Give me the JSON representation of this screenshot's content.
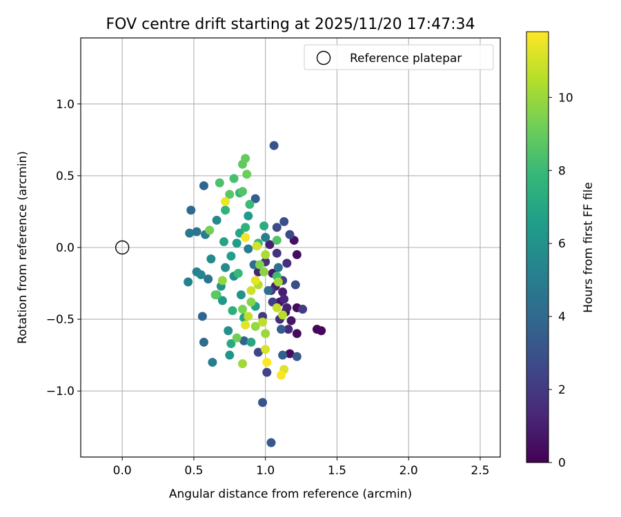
{
  "chart_data": {
    "type": "scatter",
    "title": "FOV centre drift starting at 2025/11/20 17:47:34",
    "xlabel": "Angular distance from reference (arcmin)",
    "ylabel": "Rotation from reference (arcmin)",
    "xlim": [
      -0.29,
      2.64
    ],
    "ylim": [
      -1.46,
      1.46
    ],
    "xticks": [
      0.0,
      0.5,
      1.0,
      1.5,
      2.0,
      2.5
    ],
    "xtick_labels": [
      "0.0",
      "0.5",
      "1.0",
      "1.5",
      "2.0",
      "2.5"
    ],
    "yticks": [
      -1.0,
      -0.5,
      0.0,
      0.5,
      1.0
    ],
    "ytick_labels": [
      "−1.0",
      "−0.5",
      "0.0",
      "0.5",
      "1.0"
    ],
    "grid": true,
    "legend": {
      "position": "upper-right",
      "entries": [
        "Reference platepar"
      ]
    },
    "reference_point": {
      "x": 0.0,
      "y": 0.0,
      "label": "Reference platepar"
    },
    "colorbar": {
      "label": "Hours from first FF file",
      "colormap": "viridis",
      "range": [
        0,
        11.8
      ],
      "ticks": [
        0,
        2,
        4,
        6,
        8,
        10
      ],
      "tick_labels": [
        "0",
        "2",
        "4",
        "6",
        "8",
        "10"
      ]
    },
    "points": [
      {
        "x": 1.36,
        "y": -0.57,
        "h": 0.2
      },
      {
        "x": 1.39,
        "y": -0.58,
        "h": 0.2
      },
      {
        "x": 1.22,
        "y": -0.6,
        "h": 0.3
      },
      {
        "x": 1.22,
        "y": -0.42,
        "h": 0.3
      },
      {
        "x": 1.17,
        "y": -0.74,
        "h": 0.4
      },
      {
        "x": 1.22,
        "y": -0.05,
        "h": 0.4
      },
      {
        "x": 1.2,
        "y": 0.05,
        "h": 0.5
      },
      {
        "x": 1.14,
        "y": -0.45,
        "h": 0.5
      },
      {
        "x": 1.1,
        "y": -0.38,
        "h": 0.6
      },
      {
        "x": 1.18,
        "y": -0.51,
        "h": 0.7
      },
      {
        "x": 1.05,
        "y": -0.18,
        "h": 0.8
      },
      {
        "x": 1.07,
        "y": -0.27,
        "h": 0.9
      },
      {
        "x": 1.12,
        "y": -0.31,
        "h": 1.0
      },
      {
        "x": 1.03,
        "y": 0.02,
        "h": 1.0
      },
      {
        "x": 1.15,
        "y": -0.42,
        "h": 1.1
      },
      {
        "x": 0.95,
        "y": -0.17,
        "h": 1.2
      },
      {
        "x": 1.13,
        "y": -0.36,
        "h": 1.3
      },
      {
        "x": 1.16,
        "y": -0.57,
        "h": 1.4
      },
      {
        "x": 1.1,
        "y": -0.5,
        "h": 1.5
      },
      {
        "x": 1.15,
        "y": -0.11,
        "h": 1.6
      },
      {
        "x": 1.0,
        "y": -0.1,
        "h": 1.7
      },
      {
        "x": 1.08,
        "y": -0.04,
        "h": 1.8
      },
      {
        "x": 1.04,
        "y": -0.3,
        "h": 1.9
      },
      {
        "x": 0.98,
        "y": -0.48,
        "h": 2.0
      },
      {
        "x": 1.26,
        "y": -0.43,
        "h": 2.1
      },
      {
        "x": 1.05,
        "y": -0.38,
        "h": 2.2
      },
      {
        "x": 1.12,
        "y": -0.23,
        "h": 2.3
      },
      {
        "x": 1.01,
        "y": -0.87,
        "h": 2.4
      },
      {
        "x": 0.95,
        "y": -0.73,
        "h": 2.5
      },
      {
        "x": 1.17,
        "y": 0.09,
        "h": 2.6
      },
      {
        "x": 1.08,
        "y": 0.14,
        "h": 2.7
      },
      {
        "x": 1.21,
        "y": -0.26,
        "h": 2.8
      },
      {
        "x": 1.13,
        "y": 0.18,
        "h": 2.9
      },
      {
        "x": 1.06,
        "y": 0.71,
        "h": 3.0
      },
      {
        "x": 0.98,
        "y": -1.08,
        "h": 3.1
      },
      {
        "x": 1.04,
        "y": -1.36,
        "h": 3.2
      },
      {
        "x": 1.22,
        "y": -0.76,
        "h": 3.3
      },
      {
        "x": 1.11,
        "y": -0.57,
        "h": 3.4
      },
      {
        "x": 0.93,
        "y": 0.34,
        "h": 3.5
      },
      {
        "x": 1.12,
        "y": -0.75,
        "h": 3.6
      },
      {
        "x": 0.85,
        "y": -0.65,
        "h": 3.7
      },
      {
        "x": 0.56,
        "y": -0.48,
        "h": 3.8
      },
      {
        "x": 0.57,
        "y": 0.43,
        "h": 3.9
      },
      {
        "x": 0.48,
        "y": 0.26,
        "h": 4.0
      },
      {
        "x": 0.57,
        "y": -0.66,
        "h": 4.1
      },
      {
        "x": 1.02,
        "y": -0.3,
        "h": 4.2
      },
      {
        "x": 0.92,
        "y": -0.12,
        "h": 4.3
      },
      {
        "x": 1.09,
        "y": -0.14,
        "h": 4.4
      },
      {
        "x": 0.6,
        "y": -0.22,
        "h": 4.5
      },
      {
        "x": 0.52,
        "y": 0.11,
        "h": 4.6
      },
      {
        "x": 0.47,
        "y": 0.1,
        "h": 4.7
      },
      {
        "x": 0.58,
        "y": 0.09,
        "h": 4.8
      },
      {
        "x": 1.0,
        "y": 0.07,
        "h": 4.9
      },
      {
        "x": 0.88,
        "y": -0.01,
        "h": 5.0
      },
      {
        "x": 0.63,
        "y": -0.8,
        "h": 5.1
      },
      {
        "x": 0.46,
        "y": -0.24,
        "h": 5.2
      },
      {
        "x": 0.52,
        "y": -0.17,
        "h": 5.3
      },
      {
        "x": 0.55,
        "y": -0.19,
        "h": 5.4
      },
      {
        "x": 0.66,
        "y": 0.19,
        "h": 5.5
      },
      {
        "x": 0.62,
        "y": -0.08,
        "h": 5.6
      },
      {
        "x": 0.72,
        "y": -0.14,
        "h": 5.7
      },
      {
        "x": 0.78,
        "y": -0.2,
        "h": 5.8
      },
      {
        "x": 0.74,
        "y": -0.58,
        "h": 5.9
      },
      {
        "x": 0.83,
        "y": -0.33,
        "h": 6.0
      },
      {
        "x": 0.69,
        "y": -0.27,
        "h": 6.1
      },
      {
        "x": 0.75,
        "y": -0.75,
        "h": 6.2
      },
      {
        "x": 0.7,
        "y": -0.37,
        "h": 6.3
      },
      {
        "x": 0.88,
        "y": 0.22,
        "h": 6.4
      },
      {
        "x": 0.8,
        "y": 0.03,
        "h": 6.5
      },
      {
        "x": 0.76,
        "y": -0.06,
        "h": 6.6
      },
      {
        "x": 0.93,
        "y": -0.41,
        "h": 6.7
      },
      {
        "x": 0.85,
        "y": -0.49,
        "h": 6.8
      },
      {
        "x": 0.71,
        "y": 0.04,
        "h": 6.9
      },
      {
        "x": 0.82,
        "y": 0.1,
        "h": 7.0
      },
      {
        "x": 0.9,
        "y": -0.66,
        "h": 7.1
      },
      {
        "x": 0.76,
        "y": -0.67,
        "h": 7.2
      },
      {
        "x": 0.99,
        "y": 0.15,
        "h": 7.3
      },
      {
        "x": 0.77,
        "y": -0.44,
        "h": 7.4
      },
      {
        "x": 0.86,
        "y": 0.14,
        "h": 7.5
      },
      {
        "x": 0.72,
        "y": 0.26,
        "h": 7.6
      },
      {
        "x": 0.95,
        "y": 0.03,
        "h": 7.7
      },
      {
        "x": 0.82,
        "y": 0.38,
        "h": 7.8
      },
      {
        "x": 0.81,
        "y": -0.18,
        "h": 7.9
      },
      {
        "x": 0.89,
        "y": 0.3,
        "h": 8.0
      },
      {
        "x": 1.08,
        "y": -0.2,
        "h": 8.1
      },
      {
        "x": 0.66,
        "y": -0.33,
        "h": 8.2
      },
      {
        "x": 0.78,
        "y": 0.48,
        "h": 8.3
      },
      {
        "x": 0.68,
        "y": 0.45,
        "h": 8.4
      },
      {
        "x": 1.08,
        "y": 0.05,
        "h": 8.5
      },
      {
        "x": 0.84,
        "y": 0.39,
        "h": 8.6
      },
      {
        "x": 0.75,
        "y": 0.37,
        "h": 8.7
      },
      {
        "x": 0.65,
        "y": -0.33,
        "h": 8.8
      },
      {
        "x": 0.84,
        "y": 0.58,
        "h": 8.9
      },
      {
        "x": 0.86,
        "y": 0.62,
        "h": 9.0
      },
      {
        "x": 0.87,
        "y": 0.51,
        "h": 9.1
      },
      {
        "x": 0.8,
        "y": -0.63,
        "h": 9.2
      },
      {
        "x": 0.61,
        "y": 0.12,
        "h": 9.3
      },
      {
        "x": 0.84,
        "y": -0.43,
        "h": 9.4
      },
      {
        "x": 0.96,
        "y": -0.12,
        "h": 9.5
      },
      {
        "x": 0.9,
        "y": -0.38,
        "h": 9.6
      },
      {
        "x": 0.99,
        "y": -0.17,
        "h": 9.7
      },
      {
        "x": 0.7,
        "y": -0.23,
        "h": 9.8
      },
      {
        "x": 0.93,
        "y": -0.55,
        "h": 9.9
      },
      {
        "x": 1.0,
        "y": -0.6,
        "h": 10.0
      },
      {
        "x": 0.84,
        "y": -0.81,
        "h": 10.1
      },
      {
        "x": 1.09,
        "y": -0.24,
        "h": 10.2
      },
      {
        "x": 1.0,
        "y": -0.05,
        "h": 10.3
      },
      {
        "x": 0.95,
        "y": -0.26,
        "h": 10.4
      },
      {
        "x": 1.12,
        "y": -0.47,
        "h": 10.5
      },
      {
        "x": 0.98,
        "y": -0.52,
        "h": 10.6
      },
      {
        "x": 0.88,
        "y": -0.48,
        "h": 10.7
      },
      {
        "x": 1.08,
        "y": -0.42,
        "h": 10.8
      },
      {
        "x": 0.9,
        "y": -0.3,
        "h": 10.9
      },
      {
        "x": 0.94,
        "y": 0.01,
        "h": 11.0
      },
      {
        "x": 1.0,
        "y": -0.71,
        "h": 11.1
      },
      {
        "x": 1.13,
        "y": -0.85,
        "h": 11.2
      },
      {
        "x": 0.86,
        "y": -0.54,
        "h": 11.3
      },
      {
        "x": 0.93,
        "y": -0.23,
        "h": 11.4
      },
      {
        "x": 0.72,
        "y": 0.32,
        "h": 11.5
      },
      {
        "x": 0.86,
        "y": 0.07,
        "h": 11.6
      },
      {
        "x": 1.11,
        "y": -0.89,
        "h": 11.7
      },
      {
        "x": 1.01,
        "y": -0.8,
        "h": 11.8
      }
    ]
  }
}
